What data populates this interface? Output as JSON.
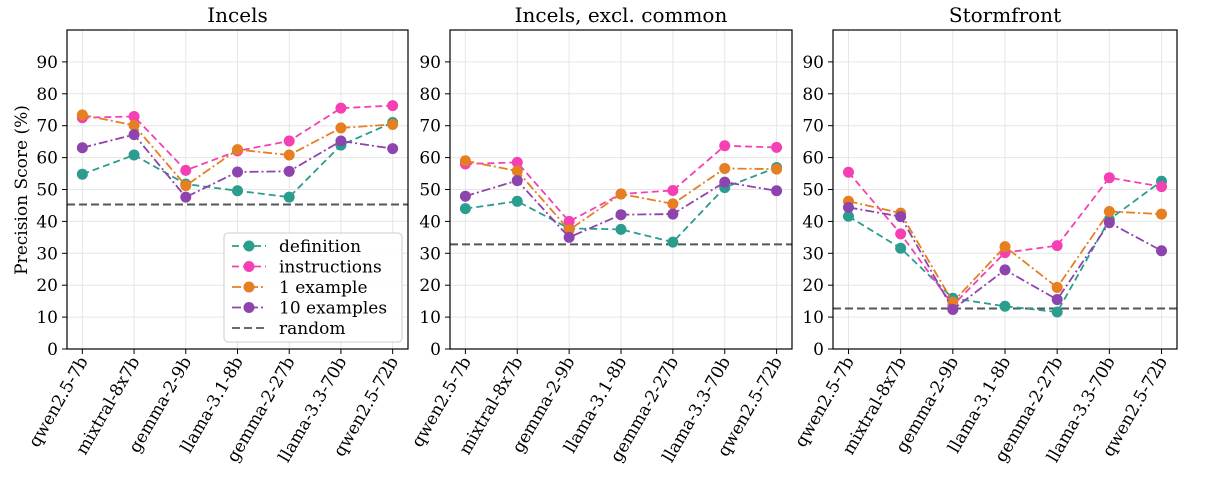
{
  "colors": {
    "definition": "#2a9d8f",
    "instructions": "#f540b3",
    "1 example": "#e67e22",
    "10 examples": "#8e44ad",
    "random": "#555555"
  },
  "ylabel": "Precision Score (%)",
  "legend": {
    "placement": "lower-right of first panel",
    "entries": [
      "definition",
      "instructions",
      "1 example",
      "10 examples",
      "random"
    ]
  },
  "chart_data": [
    {
      "type": "line",
      "title": "Incels",
      "categories": [
        "qwen2.5-7b",
        "mixtral-8x7b",
        "gemma-2-9b",
        "llama-3.1-8b",
        "gemma-2-27b",
        "llama-3.3-70b",
        "qwen2.5-72b"
      ],
      "ylim": [
        0,
        100
      ],
      "yticks": [
        0,
        10,
        20,
        30,
        40,
        50,
        60,
        70,
        80,
        90
      ],
      "grid": true,
      "random_baseline": 45.3,
      "series": [
        {
          "name": "definition",
          "values": [
            54.8,
            60.8,
            51.7,
            49.6,
            47.6,
            63.9,
            71.0
          ]
        },
        {
          "name": "instructions",
          "values": [
            72.5,
            72.9,
            56.0,
            62.1,
            65.2,
            75.5,
            76.3
          ]
        },
        {
          "name": "1 example",
          "values": [
            73.4,
            70.1,
            51.2,
            62.5,
            60.8,
            69.3,
            70.4
          ]
        },
        {
          "name": "10 examples",
          "values": [
            63.1,
            67.2,
            47.6,
            55.5,
            55.7,
            65.2,
            62.8
          ]
        }
      ]
    },
    {
      "type": "line",
      "title": "Incels, excl. common",
      "categories": [
        "qwen2.5-7b",
        "mixtral-8x7b",
        "gemma-2-9b",
        "llama-3.1-8b",
        "gemma-2-27b",
        "llama-3.3-70b",
        "qwen2.5-72b"
      ],
      "ylim": [
        0,
        100
      ],
      "yticks": [
        0,
        10,
        20,
        30,
        40,
        50,
        60,
        70,
        80,
        90
      ],
      "grid": true,
      "random_baseline": 32.8,
      "series": [
        {
          "name": "definition",
          "values": [
            44.0,
            46.3,
            37.8,
            37.5,
            33.5,
            50.6,
            56.9
          ]
        },
        {
          "name": "instructions",
          "values": [
            58.0,
            58.5,
            40.0,
            48.6,
            49.7,
            63.7,
            63.2
          ]
        },
        {
          "name": "1 example",
          "values": [
            59.0,
            55.8,
            37.3,
            48.6,
            45.5,
            56.6,
            56.4
          ]
        },
        {
          "name": "10 examples",
          "values": [
            47.9,
            52.8,
            35.0,
            42.1,
            42.3,
            52.3,
            49.6
          ]
        }
      ]
    },
    {
      "type": "line",
      "title": "Stormfront",
      "categories": [
        "qwen2.5-7b",
        "mixtral-8x7b",
        "gemma-2-9b",
        "llama-3.1-8b",
        "gemma-2-27b",
        "llama-3.3-70b",
        "qwen2.5-72b"
      ],
      "ylim": [
        0,
        100
      ],
      "yticks": [
        0,
        10,
        20,
        30,
        40,
        50,
        60,
        70,
        80,
        90
      ],
      "grid": true,
      "random_baseline": 12.7,
      "series": [
        {
          "name": "definition",
          "values": [
            41.6,
            31.6,
            15.9,
            13.4,
            11.6,
            40.6,
            52.6
          ]
        },
        {
          "name": "instructions",
          "values": [
            55.4,
            36.1,
            13.7,
            30.2,
            32.4,
            53.7,
            50.9
          ]
        },
        {
          "name": "1 example",
          "values": [
            46.3,
            42.6,
            14.7,
            32.1,
            19.3,
            43.1,
            42.3
          ]
        },
        {
          "name": "10 examples",
          "values": [
            44.4,
            41.5,
            12.4,
            24.8,
            15.5,
            39.6,
            30.8
          ]
        }
      ]
    }
  ]
}
